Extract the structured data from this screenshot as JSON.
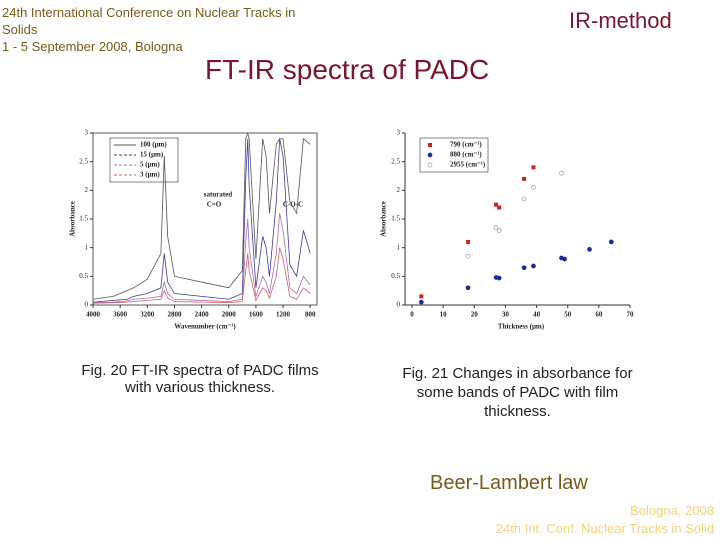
{
  "header": {
    "conference": "24th International Conference on Nuclear Tracks in Solids",
    "dates": "1 - 5 September 2008, Bologna",
    "method": "IR-method",
    "title": "FT-IR spectra of PADC"
  },
  "captions": [
    "Fig. 20 FT-IR spectra of PADC films with various thickness.",
    "Fig. 21 Changes in absorbance for some bands of PADC with film thickness."
  ],
  "note": "Beer-Lambert law",
  "footer": [
    "Bologna, 2008",
    "24th Int. Conf. Nuclear Tracks in Solid"
  ],
  "chart_data": [
    {
      "type": "line",
      "x_label": "Wavenumber (cm⁻¹)",
      "y_label": "Absorbance",
      "x": [
        4000,
        3700,
        3500,
        3400,
        3200,
        3000,
        2950,
        2900,
        2800,
        2400,
        2000,
        1800,
        1750,
        1720,
        1700,
        1600,
        1500,
        1450,
        1400,
        1300,
        1250,
        1200,
        1100,
        1000,
        900,
        800
      ],
      "series": [
        {
          "name": "100 (μm)",
          "color": "#555555",
          "values": [
            0.1,
            0.15,
            0.25,
            0.3,
            0.45,
            0.9,
            2.6,
            1.2,
            0.5,
            0.4,
            0.3,
            0.6,
            2.9,
            3,
            2.9,
            0.8,
            2.9,
            2.6,
            1.6,
            2.8,
            2.9,
            2.9,
            1.8,
            1.6,
            2.9,
            2.8
          ]
        },
        {
          "name": "15 (μm)",
          "color": "#3a3aa0",
          "values": [
            0.05,
            0.08,
            0.1,
            0.15,
            0.2,
            0.3,
            0.9,
            0.4,
            0.2,
            0.15,
            0.1,
            0.2,
            2.2,
            2.9,
            2.1,
            0.3,
            1.2,
            1.0,
            0.5,
            1.8,
            2.9,
            2.6,
            0.7,
            0.5,
            1.3,
            0.9
          ]
        },
        {
          "name": "5 (μm)",
          "color": "#a070b0",
          "values": [
            0.04,
            0.05,
            0.07,
            0.1,
            0.12,
            0.15,
            0.4,
            0.2,
            0.1,
            0.08,
            0.06,
            0.1,
            1.1,
            1.5,
            1.0,
            0.15,
            0.5,
            0.4,
            0.2,
            0.9,
            1.6,
            1.3,
            0.3,
            0.2,
            0.5,
            0.35
          ]
        },
        {
          "name": "3 (μm)",
          "color": "#d06060",
          "values": [
            0.03,
            0.04,
            0.05,
            0.06,
            0.08,
            0.1,
            0.25,
            0.12,
            0.06,
            0.05,
            0.04,
            0.06,
            0.6,
            0.9,
            0.6,
            0.08,
            0.3,
            0.25,
            0.12,
            0.5,
            1.0,
            0.8,
            0.15,
            0.1,
            0.3,
            0.2
          ]
        }
      ],
      "annotations": [
        "saturated",
        "C=O",
        "C-O-C"
      ],
      "xlim": [
        4000,
        700
      ],
      "xticks": [
        4000,
        3600,
        3200,
        2800,
        2400,
        2000,
        1600,
        1200,
        800
      ],
      "ylim": [
        0,
        3
      ],
      "yticks": [
        0,
        0.5,
        1,
        1.5,
        2,
        2.5,
        3
      ]
    },
    {
      "type": "scatter",
      "x_label": "Thickness (μm)",
      "y_label": "Absorbance",
      "series": [
        {
          "name": "790 (cm⁻¹)",
          "color": "#cc2222",
          "marker": "square",
          "x": [
            3,
            18,
            27,
            28,
            36,
            39
          ],
          "values": [
            0.15,
            1.1,
            1.75,
            1.7,
            2.2,
            2.4
          ]
        },
        {
          "name": "880 (cm⁻¹)",
          "color": "#1a2aa0",
          "marker": "circle",
          "x": [
            3,
            18,
            27,
            28,
            36,
            39,
            48,
            49,
            57,
            64
          ],
          "values": [
            0.05,
            0.3,
            0.48,
            0.47,
            0.65,
            0.68,
            0.82,
            0.8,
            0.97,
            1.1
          ]
        },
        {
          "name": "2955 (cm⁻¹)",
          "color": "#999999",
          "marker": "open-circle",
          "x": [
            18,
            27,
            28,
            36,
            39,
            48
          ],
          "values": [
            0.85,
            1.35,
            1.3,
            1.85,
            2.05,
            2.3
          ]
        }
      ],
      "xlim": [
        0,
        70
      ],
      "xticks": [
        0,
        10,
        20,
        30,
        40,
        50,
        60,
        70
      ],
      "ylim": [
        0,
        3
      ],
      "yticks": [
        0,
        0.5,
        1,
        1.5,
        2,
        2.5,
        3
      ]
    }
  ]
}
